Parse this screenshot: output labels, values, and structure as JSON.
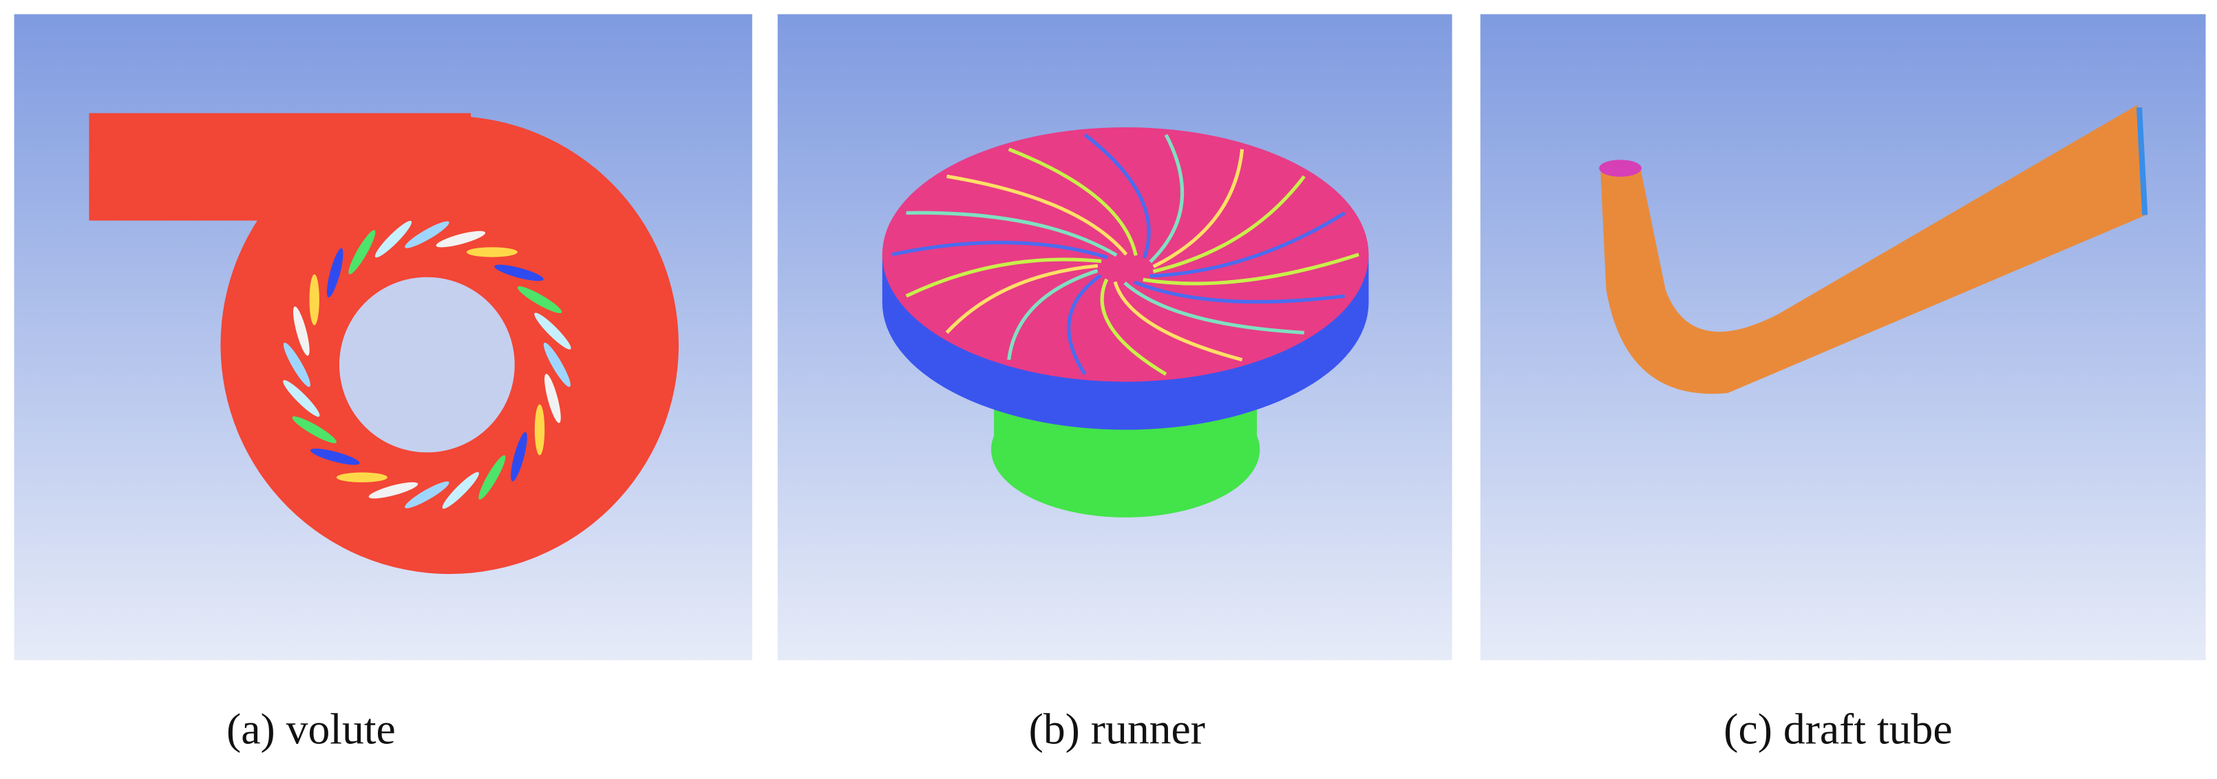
{
  "panels": [
    {
      "caption": "(a) volute"
    },
    {
      "caption": "(b) runner"
    },
    {
      "caption": "(c) draft tube"
    }
  ]
}
